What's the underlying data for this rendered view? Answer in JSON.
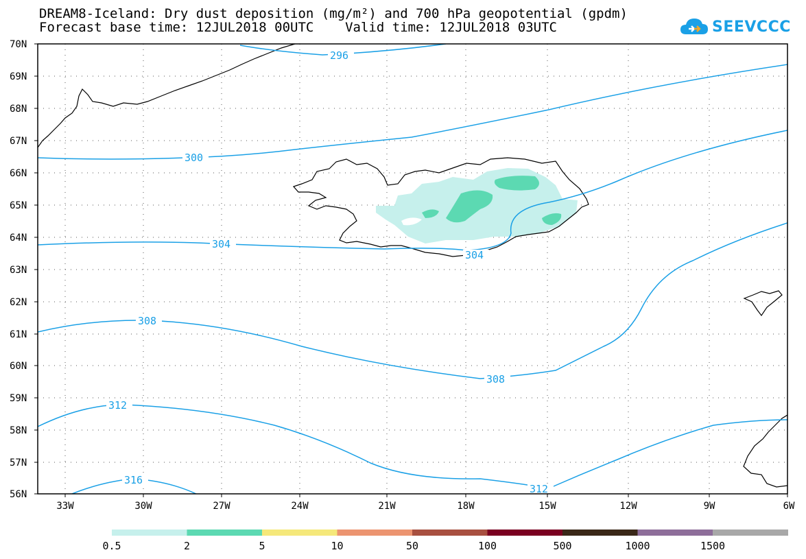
{
  "title": {
    "line1": "DREAM8-Iceland: Dry dust deposition (mg/m²) and 700 hPa geopotential (gpdm)",
    "line2": "Forecast base time: 12JUL2018 00UTC    Valid time: 12JUL2018 03UTC"
  },
  "logo": {
    "text": "SEEVCCC",
    "icon": "cloud-icon",
    "color": "#1aa0e6"
  },
  "map": {
    "lon_range": [
      -34.4,
      -6
    ],
    "lat_range": [
      56,
      70
    ],
    "lat_labels": [
      "70N",
      "69N",
      "68N",
      "67N",
      "66N",
      "65N",
      "64N",
      "63N",
      "62N",
      "61N",
      "60N",
      "59N",
      "58N",
      "57N",
      "56N"
    ],
    "lon_labels": [
      "33W",
      "30W",
      "27W",
      "24W",
      "21W",
      "18W",
      "15W",
      "12W",
      "9W",
      "6W"
    ],
    "contour_color": "#1aa0e6",
    "contour_labels": [
      "296",
      "300",
      "304",
      "304",
      "308",
      "308",
      "312",
      "312",
      "316"
    ]
  },
  "colorbar": {
    "colors": [
      "#c6f0ec",
      "#5cd9b2",
      "#f5e87a",
      "#ec9470",
      "#a85040",
      "#7a0020",
      "#3a2818",
      "#8e6e9a",
      "#a8a8a8"
    ],
    "labels": [
      "0.5",
      "2",
      "5",
      "10",
      "50",
      "100",
      "500",
      "1000",
      "1500"
    ]
  }
}
